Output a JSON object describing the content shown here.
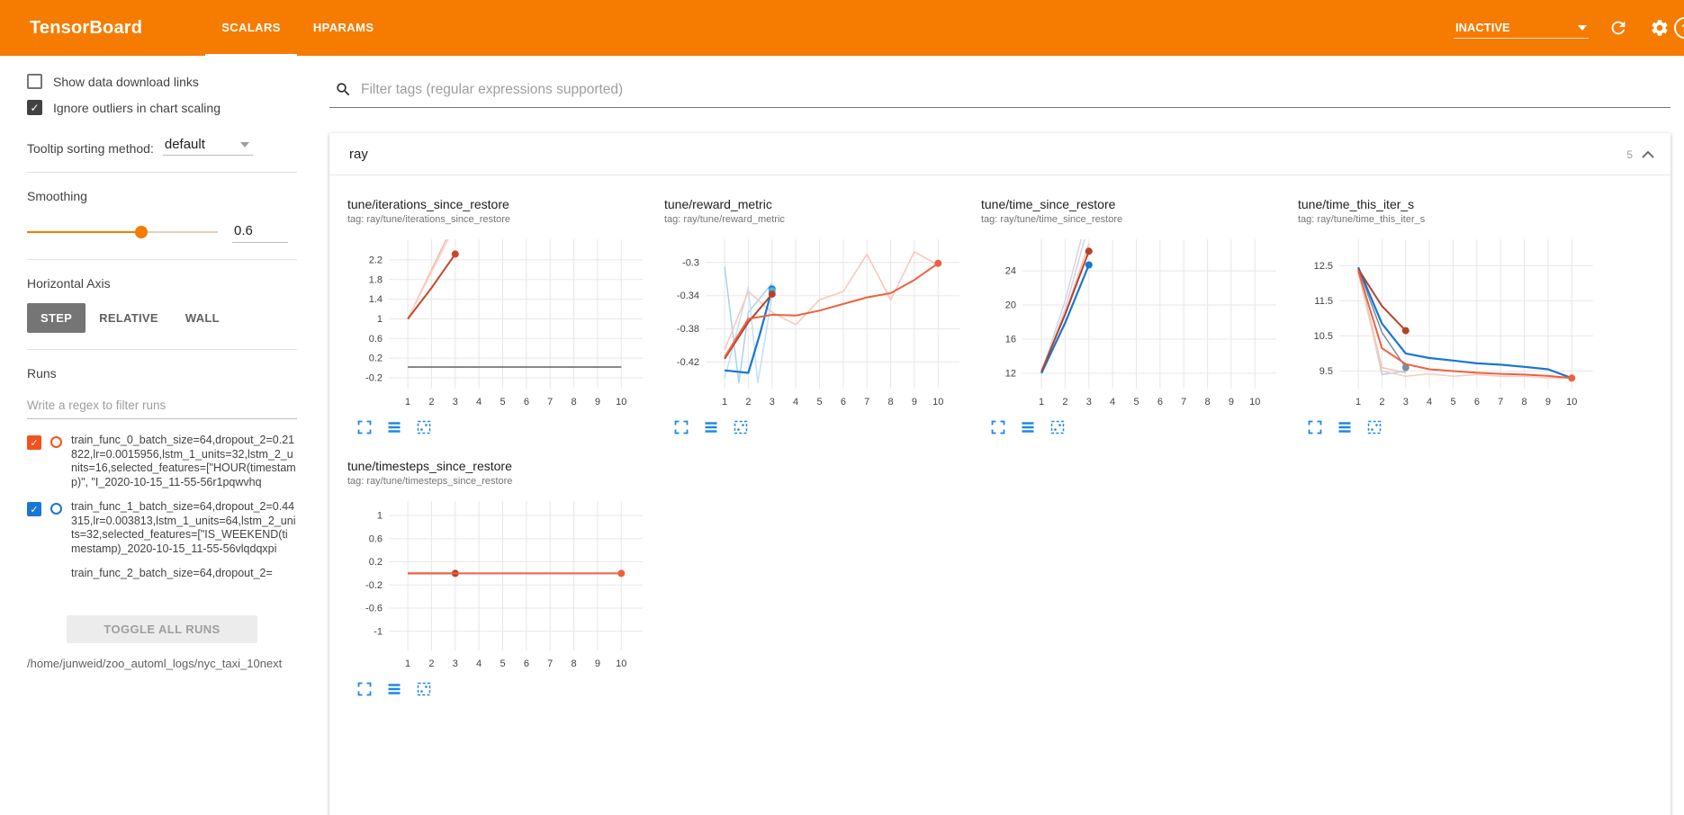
{
  "header": {
    "title": "TensorBoard",
    "tabs": [
      {
        "label": "SCALARS",
        "active": true
      },
      {
        "label": "HPARAMS",
        "active": false
      }
    ],
    "reload_select": "INACTIVE",
    "help_glyph": "?"
  },
  "sidebar": {
    "show_download_label": "Show data download links",
    "ignore_outliers_label": "Ignore outliers in chart scaling",
    "tooltip_label": "Tooltip sorting method:",
    "tooltip_value": "default",
    "smoothing_label": "Smoothing",
    "smoothing_value": "0.6",
    "smoothing_percent": 60,
    "haxis_label": "Horizontal Axis",
    "haxis_options": [
      {
        "label": "STEP",
        "selected": true
      },
      {
        "label": "RELATIVE",
        "selected": false
      },
      {
        "label": "WALL",
        "selected": false
      }
    ],
    "runs_label": "Runs",
    "runs_filter_placeholder": "Write a regex to filter runs",
    "runs": [
      {
        "name": "train_func_0_batch_size=64,dropout_2=0.21822,lr=0.0015956,lstm_1_units=32,lstm_2_units=16,selected_features=[\"HOUR(timestamp)\", \"I_2020-10-15_11-55-56r1pqwvhq",
        "color": "#f4511e",
        "checked": true,
        "partial": false
      },
      {
        "name": "train_func_1_batch_size=64,dropout_2=0.44315,lr=0.003813,lstm_1_units=64,lstm_2_units=32,selected_features=[\"IS_WEEKEND(timestamp)_2020-10-15_11-55-56vlqdqxpi",
        "color": "#1976d2",
        "checked": true,
        "partial": false
      },
      {
        "name": "train_func_2_batch_size=64,dropout_2=",
        "color": "#43a047",
        "checked": true,
        "partial": true
      }
    ],
    "toggle_all_label": "TOGGLE ALL RUNS",
    "log_path": "/home/junweid/zoo_automl_logs/nyc_taxi_10next"
  },
  "main": {
    "filter_placeholder": "Filter tags (regular expressions supported)",
    "section_title": "ray",
    "section_count": "5"
  },
  "chart_data": [
    {
      "type": "line",
      "title": "tune/iterations_since_restore",
      "tag": "tag: ray/tune/iterations_since_restore",
      "xlim": [
        0.2,
        10.9
      ],
      "ylim": [
        -0.42,
        2.62
      ],
      "xticks": [
        1,
        2,
        3,
        4,
        5,
        6,
        7,
        8,
        9,
        10
      ],
      "yticks": [
        -0.2,
        0.2,
        0.6,
        1,
        1.4,
        1.8,
        2.2
      ],
      "series": [
        {
          "color": "#f5b9ae",
          "w": 1.5,
          "x": [
            1,
            2,
            3
          ],
          "y": [
            1,
            2,
            3
          ],
          "dot": false
        },
        {
          "color": "#fad3c5",
          "w": 1.5,
          "x": [
            1,
            2,
            3
          ],
          "y": [
            1,
            1.95,
            2.9
          ],
          "dot": false
        },
        {
          "color": "#616161",
          "w": 1.5,
          "x": [
            1,
            10
          ],
          "y": [
            0.02,
            0.02
          ],
          "dot": false
        },
        {
          "color": "#c8462c",
          "w": 2,
          "x": [
            1,
            2,
            3
          ],
          "y": [
            1,
            1.63,
            2.32
          ],
          "dot": true
        }
      ]
    },
    {
      "type": "line",
      "title": "tune/reward_metric",
      "tag": "tag: ray/tune/reward_metric",
      "xlim": [
        0.2,
        10.9
      ],
      "ylim": [
        -0.452,
        -0.272
      ],
      "xticks": [
        1,
        2,
        3,
        4,
        5,
        6,
        7,
        8,
        9,
        10
      ],
      "yticks": [
        -0.42,
        -0.38,
        -0.34,
        -0.3
      ],
      "series": [
        {
          "color": "#a6d3f0",
          "w": 1.5,
          "x": [
            1,
            1.6,
            2,
            3
          ],
          "y": [
            -0.305,
            -0.445,
            -0.36,
            -0.325
          ],
          "dot": false
        },
        {
          "color": "#c3e1f5",
          "w": 1.5,
          "x": [
            1,
            2,
            2.4,
            3
          ],
          "y": [
            -0.44,
            -0.33,
            -0.445,
            -0.34
          ],
          "dot": false
        },
        {
          "color": "#f7c6b8",
          "w": 1.5,
          "x": [
            1,
            2,
            3,
            4,
            5,
            6,
            7,
            8,
            9,
            10
          ],
          "y": [
            -0.405,
            -0.335,
            -0.36,
            -0.375,
            -0.345,
            -0.335,
            -0.29,
            -0.345,
            -0.287,
            -0.303
          ],
          "dot": false
        },
        {
          "color": "#1976d2",
          "w": 2.2,
          "x": [
            1,
            2,
            2.5,
            3
          ],
          "y": [
            -0.43,
            -0.433,
            -0.385,
            -0.332
          ],
          "dot": true
        },
        {
          "color": "#45b6e0",
          "w": 0,
          "x": [
            3
          ],
          "y": [
            -0.334
          ],
          "dot": true
        },
        {
          "color": "#b5432b",
          "w": 2,
          "x": [
            1,
            2,
            3
          ],
          "y": [
            -0.416,
            -0.372,
            -0.338
          ],
          "dot": true
        },
        {
          "color": "#ee6140",
          "w": 2,
          "x": [
            1,
            2,
            3,
            4,
            5,
            6,
            7,
            8,
            9,
            10
          ],
          "y": [
            -0.414,
            -0.368,
            -0.363,
            -0.364,
            -0.358,
            -0.35,
            -0.342,
            -0.337,
            -0.321,
            -0.301
          ],
          "dot": true
        }
      ]
    },
    {
      "type": "line",
      "title": "tune/time_since_restore",
      "tag": "tag: ray/tune/time_since_restore",
      "xlim": [
        0.2,
        10.9
      ],
      "ylim": [
        10.2,
        27.7
      ],
      "xticks": [
        1,
        2,
        3,
        4,
        5,
        6,
        7,
        8,
        9,
        10
      ],
      "yticks": [
        12,
        16,
        20,
        24
      ],
      "series": [
        {
          "color": "#d3d6de",
          "w": 1.5,
          "x": [
            1,
            2,
            2.7
          ],
          "y": [
            12,
            20.5,
            28
          ],
          "dot": false
        },
        {
          "color": "#d8cfe6",
          "w": 1.5,
          "x": [
            1,
            2,
            2.85
          ],
          "y": [
            12,
            19.5,
            28
          ],
          "dot": false
        },
        {
          "color": "#f5c0b5",
          "w": 1.5,
          "x": [
            1,
            2,
            3
          ],
          "y": [
            12,
            19,
            27.2
          ],
          "dot": false
        },
        {
          "color": "#1976d2",
          "w": 2.2,
          "x": [
            1,
            2,
            3
          ],
          "y": [
            12,
            17.9,
            24.7
          ],
          "dot": true
        },
        {
          "color": "#b5432b",
          "w": 2,
          "x": [
            1,
            2,
            3
          ],
          "y": [
            12.2,
            18.9,
            26.3
          ],
          "dot": true
        }
      ]
    },
    {
      "type": "line",
      "title": "tune/time_this_iter_s",
      "tag": "tag: ray/tune/time_this_iter_s",
      "xlim": [
        0.2,
        10.9
      ],
      "ylim": [
        9.0,
        13.25
      ],
      "xticks": [
        1,
        2,
        3,
        4,
        5,
        6,
        7,
        8,
        9,
        10
      ],
      "yticks": [
        9.5,
        10.5,
        11.5,
        12.5
      ],
      "series": [
        {
          "color": "#f5c0b5",
          "w": 1.5,
          "x": [
            1,
            2,
            3
          ],
          "y": [
            12.4,
            9.6,
            9.45
          ],
          "dot": false
        },
        {
          "color": "#a6d3f0",
          "w": 1.5,
          "x": [
            1,
            2,
            3
          ],
          "y": [
            12.45,
            9.4,
            9.5
          ],
          "dot": false
        },
        {
          "color": "#f7cdb9",
          "w": 1.5,
          "x": [
            1,
            2,
            3,
            4,
            5,
            6,
            7,
            8,
            9,
            10
          ],
          "y": [
            12.3,
            9.5,
            9.35,
            9.42,
            9.35,
            9.4,
            9.35,
            9.35,
            9.3,
            9.3
          ],
          "dot": false
        },
        {
          "color": "#78909c",
          "w": 1.5,
          "x": [
            1,
            2,
            3
          ],
          "y": [
            12.42,
            10.6,
            9.6
          ],
          "dot": true
        },
        {
          "color": "#1976d2",
          "w": 2.2,
          "x": [
            1,
            2,
            3,
            4,
            5,
            6,
            7,
            8,
            9,
            10
          ],
          "y": [
            12.45,
            10.85,
            10.0,
            9.87,
            9.8,
            9.72,
            9.68,
            9.62,
            9.55,
            9.3
          ],
          "dot": false
        },
        {
          "color": "#b5432b",
          "w": 2,
          "x": [
            1,
            2,
            3
          ],
          "y": [
            12.4,
            11.35,
            10.65
          ],
          "dot": true
        },
        {
          "color": "#ee6140",
          "w": 2,
          "x": [
            1,
            2,
            3,
            4,
            5,
            6,
            7,
            8,
            9,
            10
          ],
          "y": [
            12.35,
            10.15,
            9.7,
            9.55,
            9.5,
            9.45,
            9.42,
            9.4,
            9.36,
            9.3
          ],
          "dot": true
        }
      ]
    },
    {
      "type": "line",
      "title": "tune/timesteps_since_restore",
      "tag": "tag: ray/tune/timesteps_since_restore",
      "xlim": [
        0.2,
        10.9
      ],
      "ylim": [
        -1.33,
        1.25
      ],
      "xticks": [
        1,
        2,
        3,
        4,
        5,
        6,
        7,
        8,
        9,
        10
      ],
      "yticks": [
        -1,
        -0.6,
        -0.2,
        0.2,
        0.6,
        1
      ],
      "series": [
        {
          "color": "#9e9e9e",
          "w": 1.5,
          "x": [
            1,
            10
          ],
          "y": [
            0,
            0
          ],
          "dot": false
        },
        {
          "color": "#b5432b",
          "w": 2,
          "x": [
            1,
            3
          ],
          "y": [
            0,
            0
          ],
          "dot": true
        },
        {
          "color": "#ee6140",
          "w": 2,
          "x": [
            1,
            10
          ],
          "y": [
            0,
            0
          ],
          "dot": true
        }
      ]
    }
  ]
}
